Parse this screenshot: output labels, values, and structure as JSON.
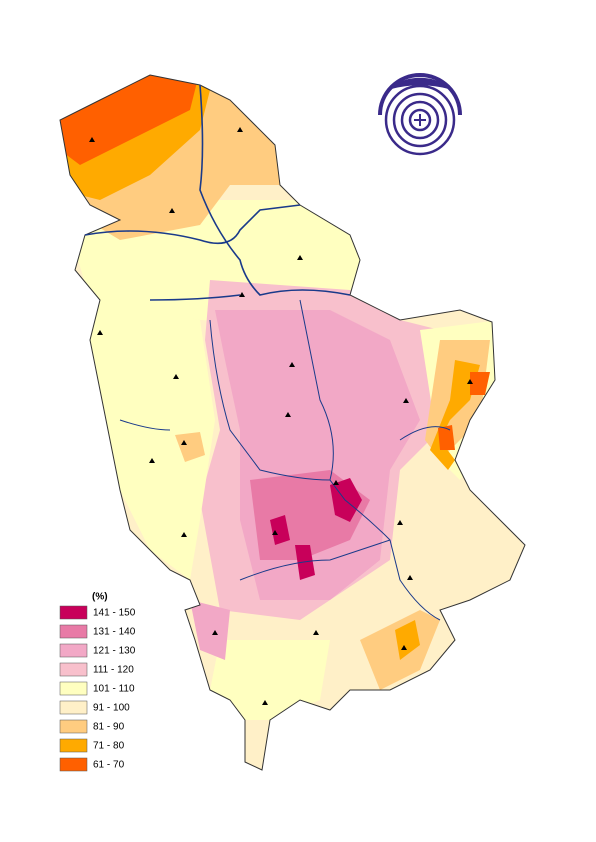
{
  "legend": {
    "title": "(%)",
    "items": [
      {
        "label": "141 - 150",
        "color": "#c8005a"
      },
      {
        "label": "131 - 140",
        "color": "#e87aa6"
      },
      {
        "label": "121 - 130",
        "color": "#f2a8c6"
      },
      {
        "label": "111 - 120",
        "color": "#f8c0cc"
      },
      {
        "label": "101 - 110",
        "color": "#ffffc0"
      },
      {
        "label": "91 - 100",
        "color": "#fff0c8"
      },
      {
        "label": "81 - 90",
        "color": "#ffcc80"
      },
      {
        "label": "71 - 80",
        "color": "#ffaa00"
      },
      {
        "label": "61 - 70",
        "color": "#ff6000"
      }
    ]
  }
}
